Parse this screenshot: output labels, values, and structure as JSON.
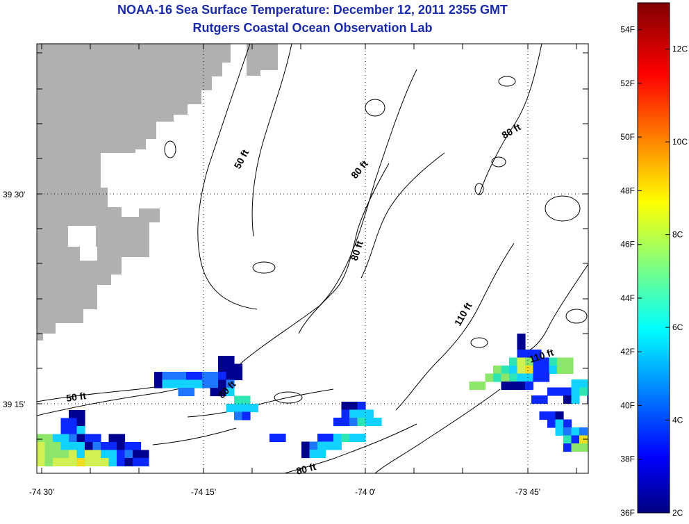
{
  "title": "NOAA-16 Sea Surface Temperature:  December 12, 2011 2355 GMT",
  "subtitle": "Rutgers Coastal Ocean Observation Lab",
  "colors": {
    "land": "#b0b0b0",
    "title": "#1a2aa8"
  },
  "axes": {
    "x_ticks": [
      "-74 30'",
      "-74 15'",
      "-74 0'",
      "-73 45'"
    ],
    "y_ticks": [
      "39 30'",
      "39 15'"
    ]
  },
  "contour_labels": [
    "50 ft",
    "50 ft",
    "80 ft",
    "80 ft",
    "80 ft",
    "80 ft",
    "80 ft",
    "110 ft",
    "110 ft"
  ],
  "colorbar": {
    "colormap": "jet",
    "range_f": [
      36,
      55
    ],
    "range_c": [
      2,
      13
    ],
    "fahrenheit_labels": [
      "54F",
      "52F",
      "50F",
      "48F",
      "46F",
      "44F",
      "42F",
      "40F",
      "38F",
      "36F"
    ],
    "celsius_labels": [
      "12C",
      "10C",
      "8C",
      "6C",
      "4C",
      "2C"
    ]
  }
}
